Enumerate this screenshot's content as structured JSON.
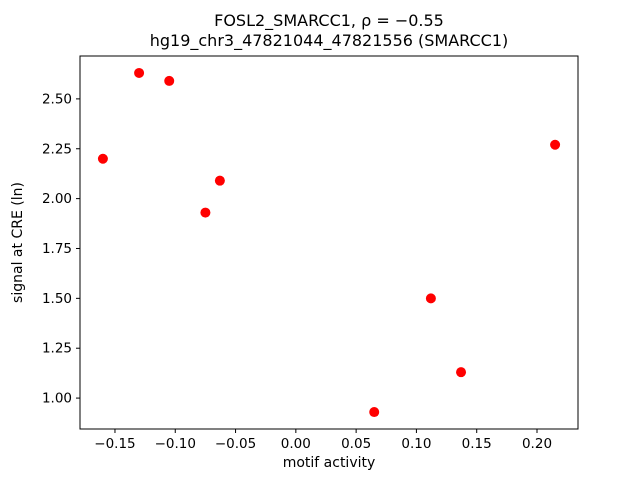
{
  "chart_data": {
    "type": "scatter",
    "title_line1": "FOSL2_SMARCC1, ρ = −0.55",
    "title_line2": "hg19_chr3_47821044_47821556 (SMARCC1)",
    "xlabel": "motif activity",
    "ylabel": "signal at CRE (ln)",
    "xlim": [
      -0.179,
      0.234
    ],
    "ylim": [
      0.845,
      2.715
    ],
    "xticks": {
      "values": [
        -0.15,
        -0.1,
        -0.05,
        0.0,
        0.05,
        0.1,
        0.15,
        0.2
      ],
      "labels": [
        "−0.15",
        "−0.10",
        "−0.05",
        "0.00",
        "0.05",
        "0.10",
        "0.15",
        "0.20"
      ]
    },
    "yticks": {
      "values": [
        1.0,
        1.25,
        1.5,
        1.75,
        2.0,
        2.25,
        2.5
      ],
      "labels": [
        "1.00",
        "1.25",
        "1.50",
        "1.75",
        "2.00",
        "2.25",
        "2.50"
      ]
    },
    "points": [
      {
        "x": -0.16,
        "y": 2.2
      },
      {
        "x": -0.13,
        "y": 2.63
      },
      {
        "x": -0.105,
        "y": 2.59
      },
      {
        "x": -0.075,
        "y": 1.93
      },
      {
        "x": -0.063,
        "y": 2.09
      },
      {
        "x": 0.065,
        "y": 0.93
      },
      {
        "x": 0.112,
        "y": 1.5
      },
      {
        "x": 0.137,
        "y": 1.13
      },
      {
        "x": 0.215,
        "y": 2.27
      }
    ],
    "marker_color": "#ff0000",
    "marker_radius": 5,
    "axis_color": "#000000",
    "background": "#ffffff",
    "legend": "none",
    "grid": false
  }
}
